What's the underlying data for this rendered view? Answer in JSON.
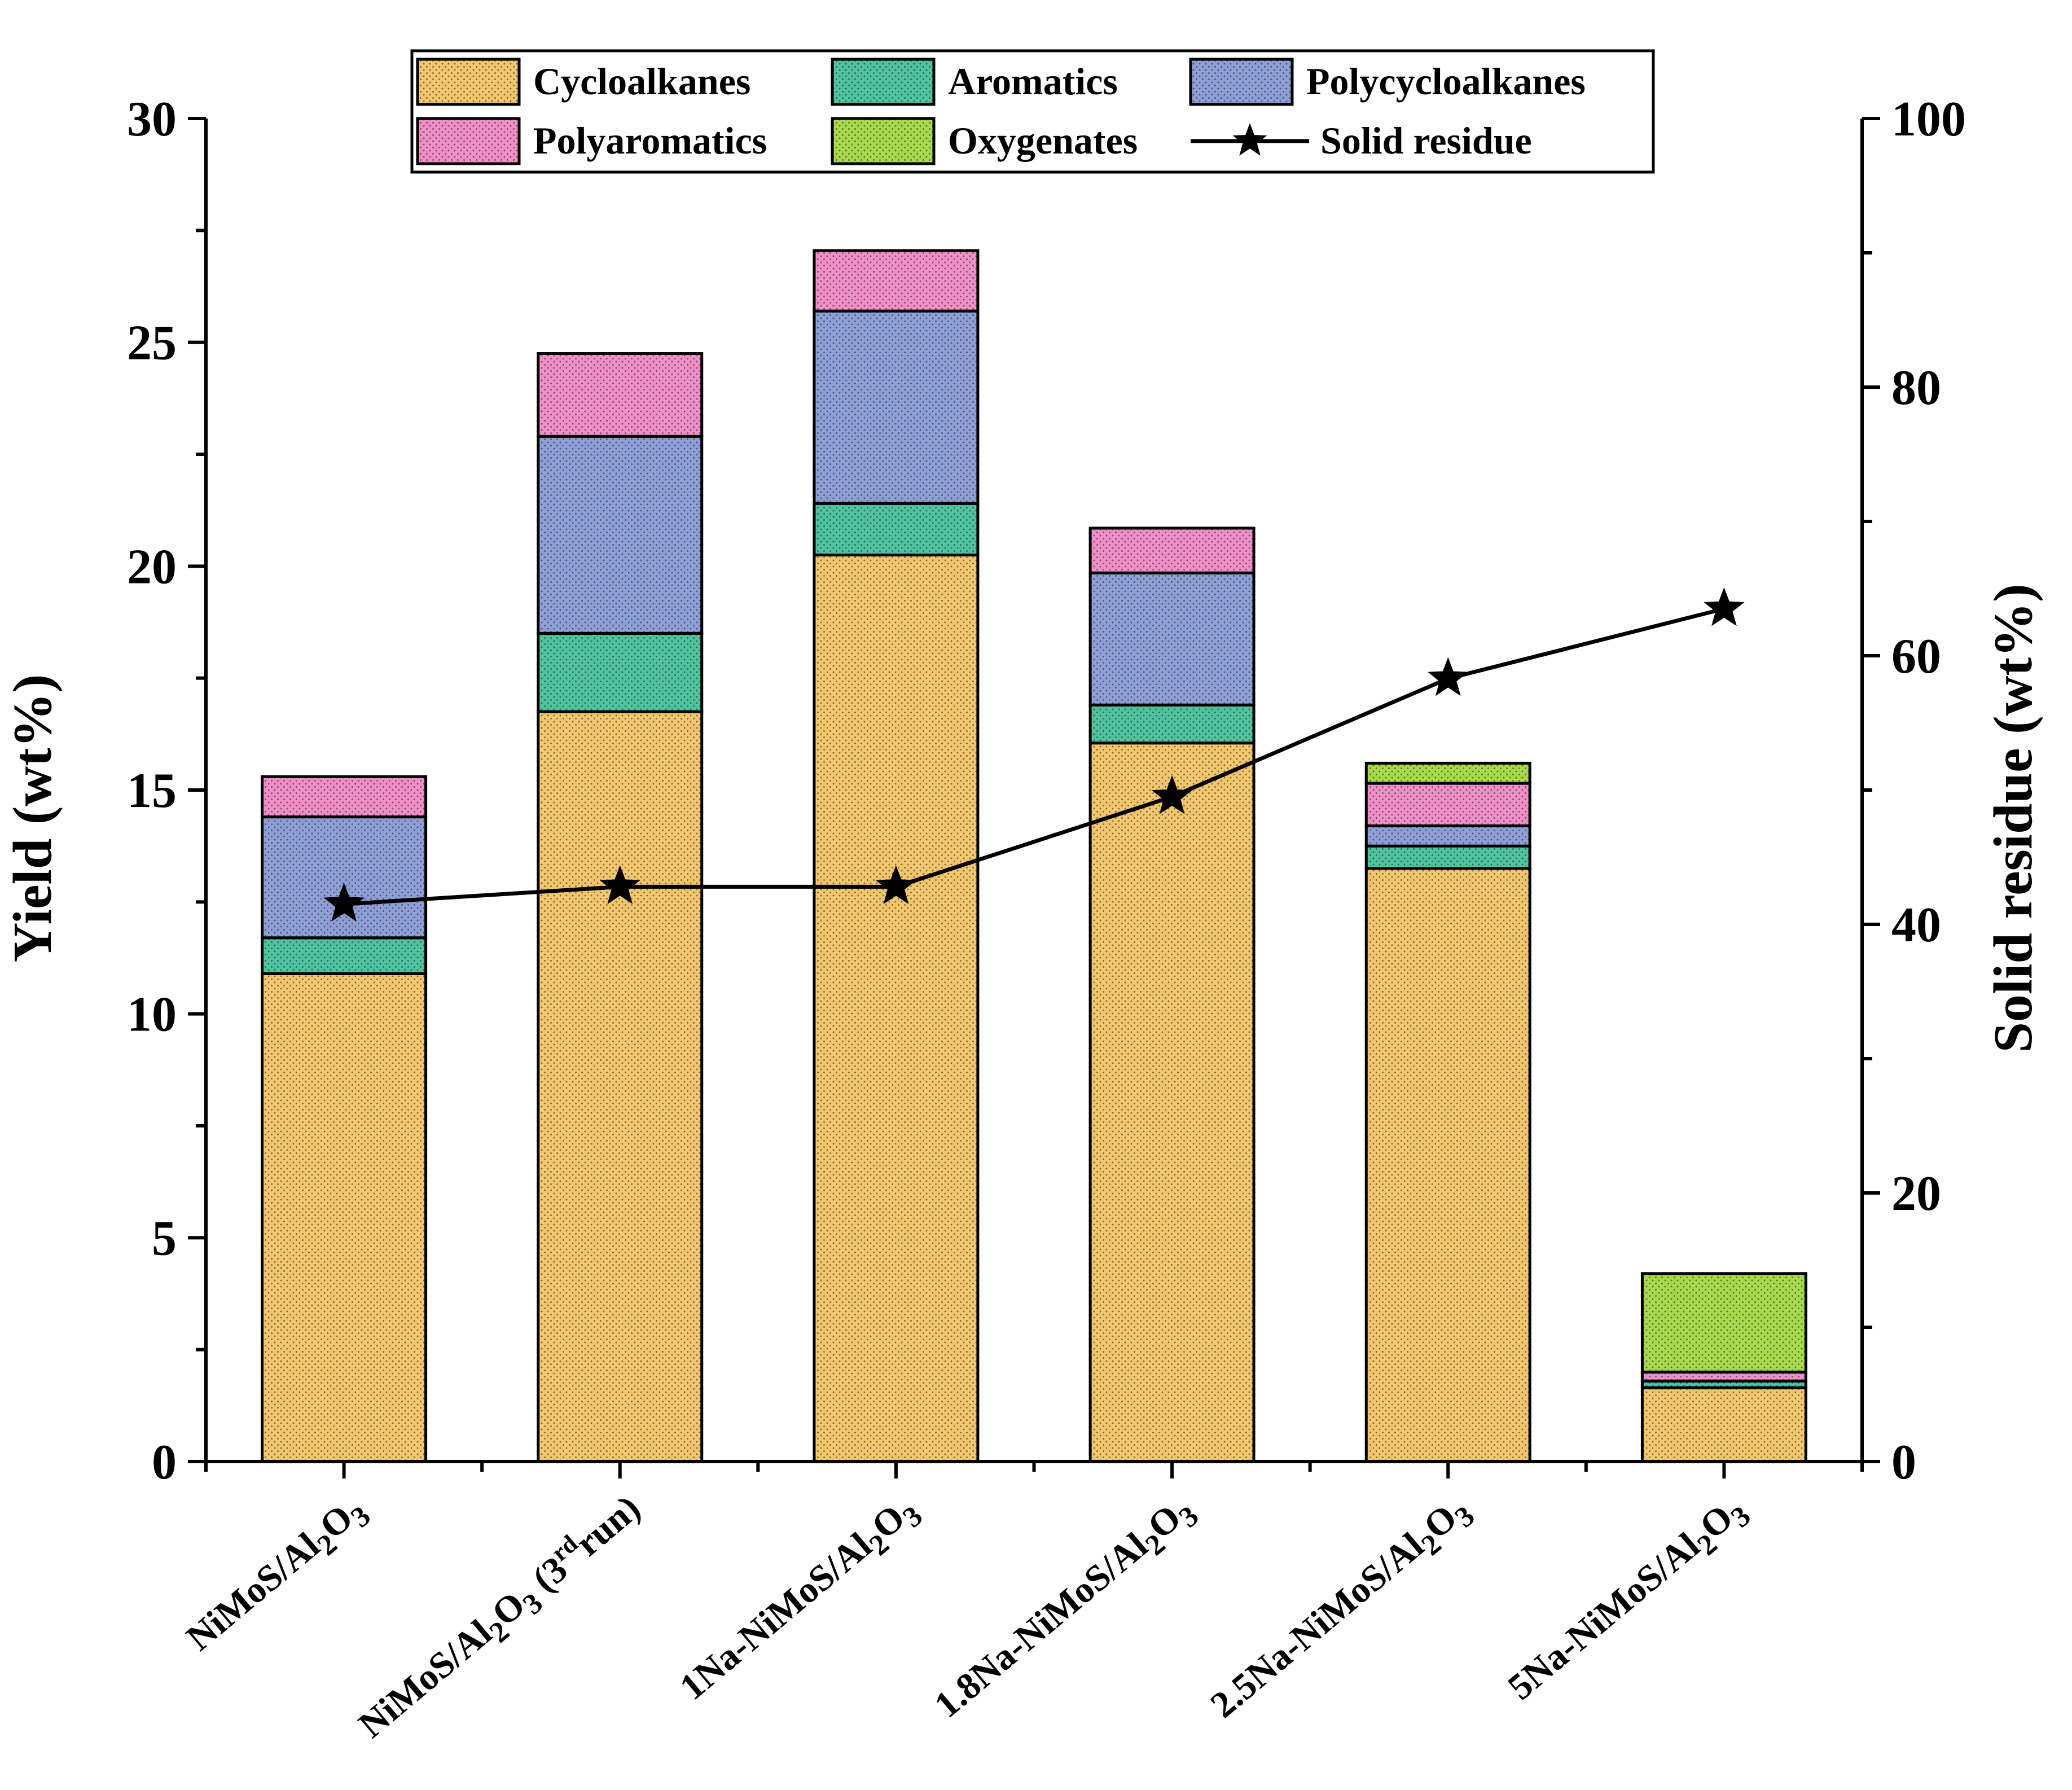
{
  "chart_data": {
    "type": "bar",
    "stacked": true,
    "categories": [
      {
        "main": "NiMoS/Al",
        "sub": "2",
        "tail": "O",
        "sub2": "3",
        "suffix": ""
      },
      {
        "main": "NiMoS/Al",
        "sub": "2",
        "tail": "O",
        "sub2": "3",
        "suffix": " (3",
        "sup": "rd",
        "suffix2": "run)"
      },
      {
        "main": "1Na-NiMoS/Al",
        "sub": "2",
        "tail": "O",
        "sub2": "3",
        "suffix": ""
      },
      {
        "main": "1.8Na-NiMoS/Al",
        "sub": "2",
        "tail": "O",
        "sub2": "3",
        "suffix": ""
      },
      {
        "main": "2.5Na-NiMoS/Al",
        "sub": "2",
        "tail": "O",
        "sub2": "3",
        "suffix": ""
      },
      {
        "main": "5Na-NiMoS/Al",
        "sub": "2",
        "tail": "O",
        "sub2": "3",
        "suffix": ""
      }
    ],
    "series": [
      {
        "name": "Cycloalkanes",
        "color": "#f2c66d",
        "values": [
          10.9,
          16.75,
          20.25,
          16.05,
          13.25,
          1.65
        ]
      },
      {
        "name": "Aromatics",
        "color": "#4fc29e",
        "values": [
          0.8,
          1.75,
          1.15,
          0.85,
          0.5,
          0.15
        ]
      },
      {
        "name": "Polycycloalkanes",
        "color": "#8d9fd6",
        "values": [
          2.7,
          4.4,
          4.3,
          2.95,
          0.45,
          0.0
        ]
      },
      {
        "name": "Polyaromatics",
        "color": "#f08ec8",
        "values": [
          0.9,
          1.85,
          1.35,
          1.0,
          0.95,
          0.2
        ]
      },
      {
        "name": "Oxygenates",
        "color": "#a6d94c",
        "values": [
          0.0,
          0.0,
          0.0,
          0.0,
          0.45,
          2.2
        ]
      }
    ],
    "line_series": {
      "name": "Solid residue",
      "color": "#000000",
      "marker": "star",
      "axis": "right",
      "values": [
        41.5,
        42.8,
        42.8,
        49.5,
        58.3,
        63.5
      ]
    },
    "ylabel": "Yield (wt%)",
    "y2label": "Solid residue (wt%)",
    "ylim": [
      0,
      30
    ],
    "y2lim": [
      0,
      100
    ],
    "yticks": [
      0,
      5,
      10,
      15,
      20,
      25,
      30
    ],
    "y2ticks": [
      0,
      20,
      40,
      60,
      80,
      100
    ],
    "legend_position": "top-center",
    "grid": false
  }
}
